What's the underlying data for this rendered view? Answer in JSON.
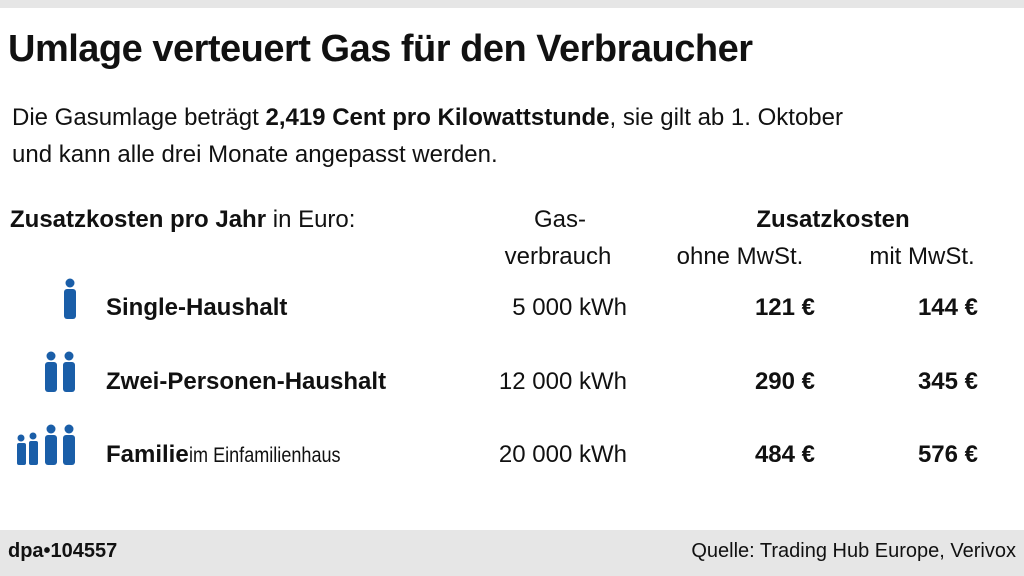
{
  "header": {
    "title": "Umlage verteuert Gas für den Verbraucher"
  },
  "intro": {
    "before": "Die Gasumlage beträgt ",
    "bold": "2,419 Cent pro Kilowattstunde",
    "after_line1": ", sie gilt ab 1. Oktober",
    "line2": "und kann alle drei Monate angepasst werden."
  },
  "table": {
    "caption_bold": "Zusatzkosten pro Jahr",
    "caption_rest": " in Euro:",
    "columns": {
      "consumption": [
        "Gas-",
        "verbrauch"
      ],
      "group": "Zusatzkosten",
      "net": "ohne MwSt.",
      "gross": "mit MwSt."
    },
    "rows": [
      {
        "label": "Single-Haushalt",
        "label_extra": null,
        "consumption": "5 000 kWh",
        "net": "121 €",
        "gross": "144 €"
      },
      {
        "label": "Zwei-Personen-Haushalt",
        "label_extra": null,
        "consumption": "12 000 kWh",
        "net": "290 €",
        "gross": "345 €"
      },
      {
        "label": "Familie",
        "label_extra": " im Einfamilienhaus",
        "consumption": "20 000 kWh",
        "net": "484 €",
        "gross": "576 €"
      }
    ]
  },
  "footer": {
    "agency": "dpa•104557",
    "source": "Quelle: Trading Hub Europe, Verivox"
  }
}
